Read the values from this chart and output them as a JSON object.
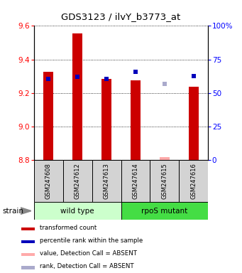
{
  "title": "GDS3123 / ilvY_b3773_at",
  "samples": [
    "GSM247608",
    "GSM247612",
    "GSM247613",
    "GSM247614",
    "GSM247615",
    "GSM247616"
  ],
  "red_values": [
    9.325,
    9.555,
    9.285,
    9.275,
    8.815,
    9.235
  ],
  "blue_values": [
    9.285,
    9.295,
    9.285,
    9.325,
    9.255,
    9.3
  ],
  "red_absent_flag": [
    false,
    false,
    false,
    false,
    true,
    false
  ],
  "blue_absent_flag": [
    false,
    false,
    false,
    false,
    true,
    false
  ],
  "ylim_left": [
    8.8,
    9.6
  ],
  "ylim_right": [
    0,
    100
  ],
  "yticks_left": [
    8.8,
    9.0,
    9.2,
    9.4,
    9.6
  ],
  "yticks_right": [
    0,
    25,
    50,
    75,
    100
  ],
  "ytick_labels_right": [
    "0",
    "25",
    "50",
    "75",
    "100%"
  ],
  "groups": [
    {
      "label": "wild type",
      "start": 0,
      "end": 2,
      "color": "#ccffcc"
    },
    {
      "label": "rpoS mutant",
      "start": 3,
      "end": 5,
      "color": "#44dd44"
    }
  ],
  "bar_width": 0.35,
  "red_color": "#cc0000",
  "blue_color": "#0000bb",
  "pink_color": "#ffaaaa",
  "lavender_color": "#aaaacc",
  "strain_label": "strain",
  "legend_items": [
    {
      "color": "#cc0000",
      "label": "transformed count"
    },
    {
      "color": "#0000bb",
      "label": "percentile rank within the sample"
    },
    {
      "color": "#ffaaaa",
      "label": "value, Detection Call = ABSENT"
    },
    {
      "color": "#aaaacc",
      "label": "rank, Detection Call = ABSENT"
    }
  ],
  "bar_base": 8.8
}
